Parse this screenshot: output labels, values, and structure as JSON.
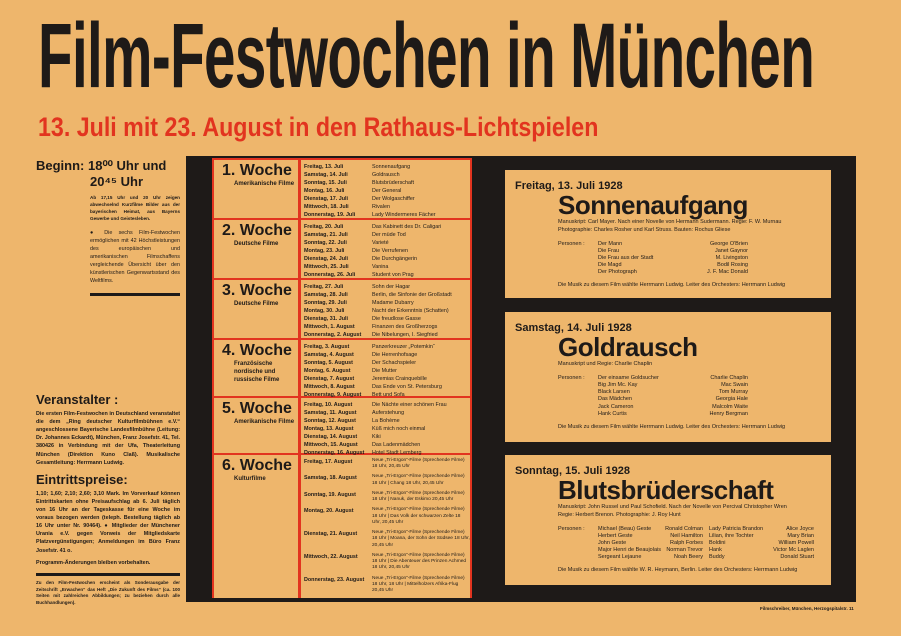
{
  "title": "Film-Festwochen in München",
  "subtitle": "13. Juli mit 23. August in den Rathaus-Lichtspielen",
  "beginn": {
    "label": "Beginn:",
    "time1": "18⁰⁰ Uhr und",
    "time2": "20⁴⁵ Uhr",
    "note": "Ab 17,15 Uhr und 20 Uhr zeigen abwechselnd Kurzfilme Bilder aus der bayerischen Heimat, aus Bayerns Gewerbe und Geistesleben.",
    "text": "● Die sechs Film-Festwochen ermöglichen mit 42 Höchstleistungen des europäischen und amerikanischen Filmschaffens vergleichende Übersicht über den künstlerischen Gegenwartsstand des Weltfilms."
  },
  "veranstalter": {
    "heading": "Veranstalter :",
    "text": "Die ersten Film-Festwochen in Deutschland veranstaltet die dem „Ring deutscher Kulturfilmbühnen e.V.“ angeschlossene Bayerische Landesfilmbühne (Leitung: Dr. Johannes Eckardt), München, Franz Josefstr. 41, Tel. 380426 in Verbindung mit der Ufa, Theaterleitung München (Direktion Kuno Claß). Musikalische Gesamtleitung: Herrmann Ludwig."
  },
  "preise": {
    "heading": "Eintrittspreise:",
    "text": "1,10; 1,60; 2,10; 2,60; 3,10 Mark. Im Vorverkauf können Eintrittskarten ohne Preisaufschlag ab 6. Juli täglich von 16 Uhr an der Tageskasse für eine Woche im voraus bezogen werden (teleph. Bestellung täglich ab 16 Uhr unter Nr. 90464). ● Mitglieder der Münchener Urania e.V. gegen Vorweis der Mitgliedskarte Platzvergünstigungen; Anmeldungen im Büro Franz Josefstr. 41 o.",
    "note": "Programm-Änderungen bleiben vorbehalten."
  },
  "footnote": "Zu den Film-Festwochen erscheint als Sonderausgabe der Zeitschrift „Erwachen“ das Heft „Die Zukunft des Films“ (ca. 100 Seiten mit zahlreichen Abbildungen; zu beziehen durch alle Buchhandlungen).",
  "printer": "Filmschreiber, München, Herzogspitalstr. 11",
  "weeks": [
    {
      "label": "1. Woche",
      "sub": "Amerikanische Filme",
      "days": [
        [
          "Freitag, 13. Juli",
          "Sonnenaufgang"
        ],
        [
          "Samstag, 14. Juli",
          "Goldrausch"
        ],
        [
          "Sonntag, 15. Juli",
          "Blutsbrüderschaft"
        ],
        [
          "Montag, 16. Juli",
          "Der General"
        ],
        [
          "Dienstag, 17. Juli",
          "Der Wolgaschiffer"
        ],
        [
          "Mittwoch, 18. Juli",
          "Rivalen"
        ],
        [
          "Donnerstag, 19. Juli",
          "Lady Windermeres Fächer"
        ]
      ]
    },
    {
      "label": "2. Woche",
      "sub": "Deutsche Filme",
      "days": [
        [
          "Freitag, 20. Juli",
          "Das Kabinett des Dr. Caligari"
        ],
        [
          "Samstag, 21. Juli",
          "Der müde Tod"
        ],
        [
          "Sonntag, 22. Juli",
          "Varieté"
        ],
        [
          "Montag, 23. Juli",
          "Die Verrufenen"
        ],
        [
          "Dienstag, 24. Juli",
          "Die Durchgängerin"
        ],
        [
          "Mittwoch, 25. Juli",
          "Vanina"
        ],
        [
          "Donnerstag, 26. Juli",
          "Student von Prag"
        ]
      ]
    },
    {
      "label": "3. Woche",
      "sub": "Deutsche Filme",
      "days": [
        [
          "Freitag, 27. Juli",
          "Sohn der Hagar"
        ],
        [
          "Samstag, 28. Juli",
          "Berlin, die Sinfonie der Großstadt"
        ],
        [
          "Sonntag, 29. Juli",
          "Madame Dubarry"
        ],
        [
          "Montag, 30. Juli",
          "Nacht der Erkenntnis (Schatten)"
        ],
        [
          "Dienstag, 31. Juli",
          "Die freudlose Gasse"
        ],
        [
          "Mittwoch, 1. August",
          "Finanzen des Großherzogs"
        ],
        [
          "Donnerstag, 2. August",
          "Die Nibelungen, I. Siegfried"
        ]
      ]
    },
    {
      "label": "4. Woche",
      "sub": "Französische nordische und russische Filme",
      "days": [
        [
          "Freitag, 3. August",
          "Panzerkreuzer „Potemkin“"
        ],
        [
          "Samstag, 4. August",
          "Die Herrenhofsage"
        ],
        [
          "Sonntag, 5. August",
          "Der Schachspieler"
        ],
        [
          "Montag, 6. August",
          "Die Mutter"
        ],
        [
          "Dienstag, 7. August",
          "Jeremias Crainquebille"
        ],
        [
          "Mittwoch, 8. August",
          "Das Ende von St. Petersburg"
        ],
        [
          "Donnerstag, 9. August",
          "Bett und Sofa"
        ]
      ]
    },
    {
      "label": "5. Woche",
      "sub": "Amerikanische Filme",
      "days": [
        [
          "Freitag, 10. August",
          "Die Nächte einer schönen Frau"
        ],
        [
          "Samstag, 11. August",
          "Auferstehung"
        ],
        [
          "Sonntag, 12. August",
          "La Bohème"
        ],
        [
          "Montag, 13. August",
          "Küß mich noch einmal"
        ],
        [
          "Dienstag, 14. August",
          "Kiki"
        ],
        [
          "Mittwoch, 15. August",
          "Das Ladenmädchen"
        ],
        [
          "Donnerstag, 16. August",
          "Hotel Stadt Lemberg"
        ]
      ]
    },
    {
      "label": "6. Woche",
      "sub": "Kulturfilme",
      "days": [
        [
          "Freitag, 17. August",
          "Neue „Tri-Ergon“-Filme (Sprechende Filme) 18 Uhr, 20,45 Uhr"
        ],
        [
          "Samstag, 18. August",
          "Neue „Tri-Ergon“-Filme (Sprechende Filme) 18 Uhr | Chang 18 Uhr, 20,45 Uhr"
        ],
        [
          "Sonntag, 19. August",
          "Neue „Tri-Ergon“-Filme (Sprechende Filme) 18 Uhr | Nanuk, der Eskimo 20,45 Uhr"
        ],
        [
          "Montag, 20. August",
          "Neue „Tri-Ergon“-Filme (Sprechende Filme) 18 Uhr | Das Volk der schwarzen Zelte 18 Uhr, 20,45 Uhr"
        ],
        [
          "Dienstag, 21. August",
          "Neue „Tri-Ergon“-Filme (Sprechende Filme) 18 Uhr | Moana, der Sohn der Südsee 18 Uhr, 20,45 Uhr"
        ],
        [
          "Mittwoch, 22. August",
          "Neue „Tri-Ergon“-Filme (Sprechende Filme) 18 Uhr | Die Abenteuer des Prinzen Achmed 18 Uhr, 20,45 Uhr"
        ],
        [
          "Donnerstag, 23. August",
          "Neue „Tri-Ergon“-Filme (Sprechende Filme) 18 Uhr, 18 Uhr | Mittelholzers Afrika-Flug 20,45 Uhr"
        ]
      ]
    }
  ],
  "panels": [
    {
      "date": "Freitag, 13. Juli 1928",
      "film": "Sonnenaufgang",
      "credits": [
        "Manuskript: Carl Mayer. Nach einer Novelle von Hermann Sudermann. Regie: F. W. Murnau",
        "Photographie: Charles Rosher und Karl Struss. Bauten: Rochus Gliese"
      ],
      "personen_label": "Personen :",
      "cast": [
        [
          "Der Mann",
          "George O'Brien"
        ],
        [
          "Die Frau",
          "Janet Gaynor"
        ],
        [
          "Die Frau aus der Stadt",
          "M. Livingston"
        ],
        [
          "Die Magd",
          "Bodil Rosing"
        ],
        [
          "Der Photograph",
          "J. F. Mac Donald"
        ]
      ],
      "music": "Die Musik zu diesem Film wählte Herrmann Ludwig. Leiter des Orchesters: Herrmann Ludwig"
    },
    {
      "date": "Samstag, 14. Juli 1928",
      "film": "Goldrausch",
      "credits": [
        "Manuskript und Regie: Charlie Chaplin"
      ],
      "personen_label": "Personen :",
      "cast": [
        [
          "Der einsame Goldsucher",
          "Charlie Chaplin"
        ],
        [
          "Big Jim Mc. Kay",
          "Mac Swain"
        ],
        [
          "Black Larsen",
          "Tom Murray"
        ],
        [
          "Das Mädchen",
          "Georgia Hale"
        ],
        [
          "Jack Cameron",
          "Malcolm Waite"
        ],
        [
          "Hank Curtis",
          "Henry Bergman"
        ]
      ],
      "music": "Die Musik zu diesem Film wählte Herrmann Ludwig. Leiter des Orchesters: Herrmann Ludwig"
    },
    {
      "date": "Sonntag, 15. Juli 1928",
      "film": "Blutsbrüderschaft",
      "credits": [
        "Manuskript: John Russel und Paul Schofield. Nach der Novelle von Percival Christopher Wren",
        "Regie: Herbert Brenon. Photographie: J. Roy Hunt"
      ],
      "personen_label": "Personen :",
      "cast": [
        [
          "Michael (Beau) Geste",
          "Ronald Colman"
        ],
        [
          "Lady Patricia Brandon",
          "Alice Joyce"
        ],
        [
          "Herbert Geste",
          "Neil Hamilton"
        ],
        [
          "Lilian, ihre Tochter",
          "Mary Brian"
        ],
        [
          "John Geste",
          "Ralph Forbes"
        ],
        [
          "Boldini",
          "William Powell"
        ],
        [
          "Major Henri de Beaujolais",
          "Norman Trevor"
        ],
        [
          "Hank",
          "Victor Mc Laglen"
        ],
        [
          "Sergeant Lejaune",
          "Noah Beery"
        ],
        [
          "Buddy",
          "Donald Stuart"
        ]
      ],
      "music": "Die Musik zu diesem Film wählte W. R. Heymann, Berlin. Leiter des Orchesters: Herrmann Ludwig"
    }
  ],
  "colors": {
    "background": "#eeb66c",
    "red": "#e2341f",
    "black": "#1e1a18"
  }
}
